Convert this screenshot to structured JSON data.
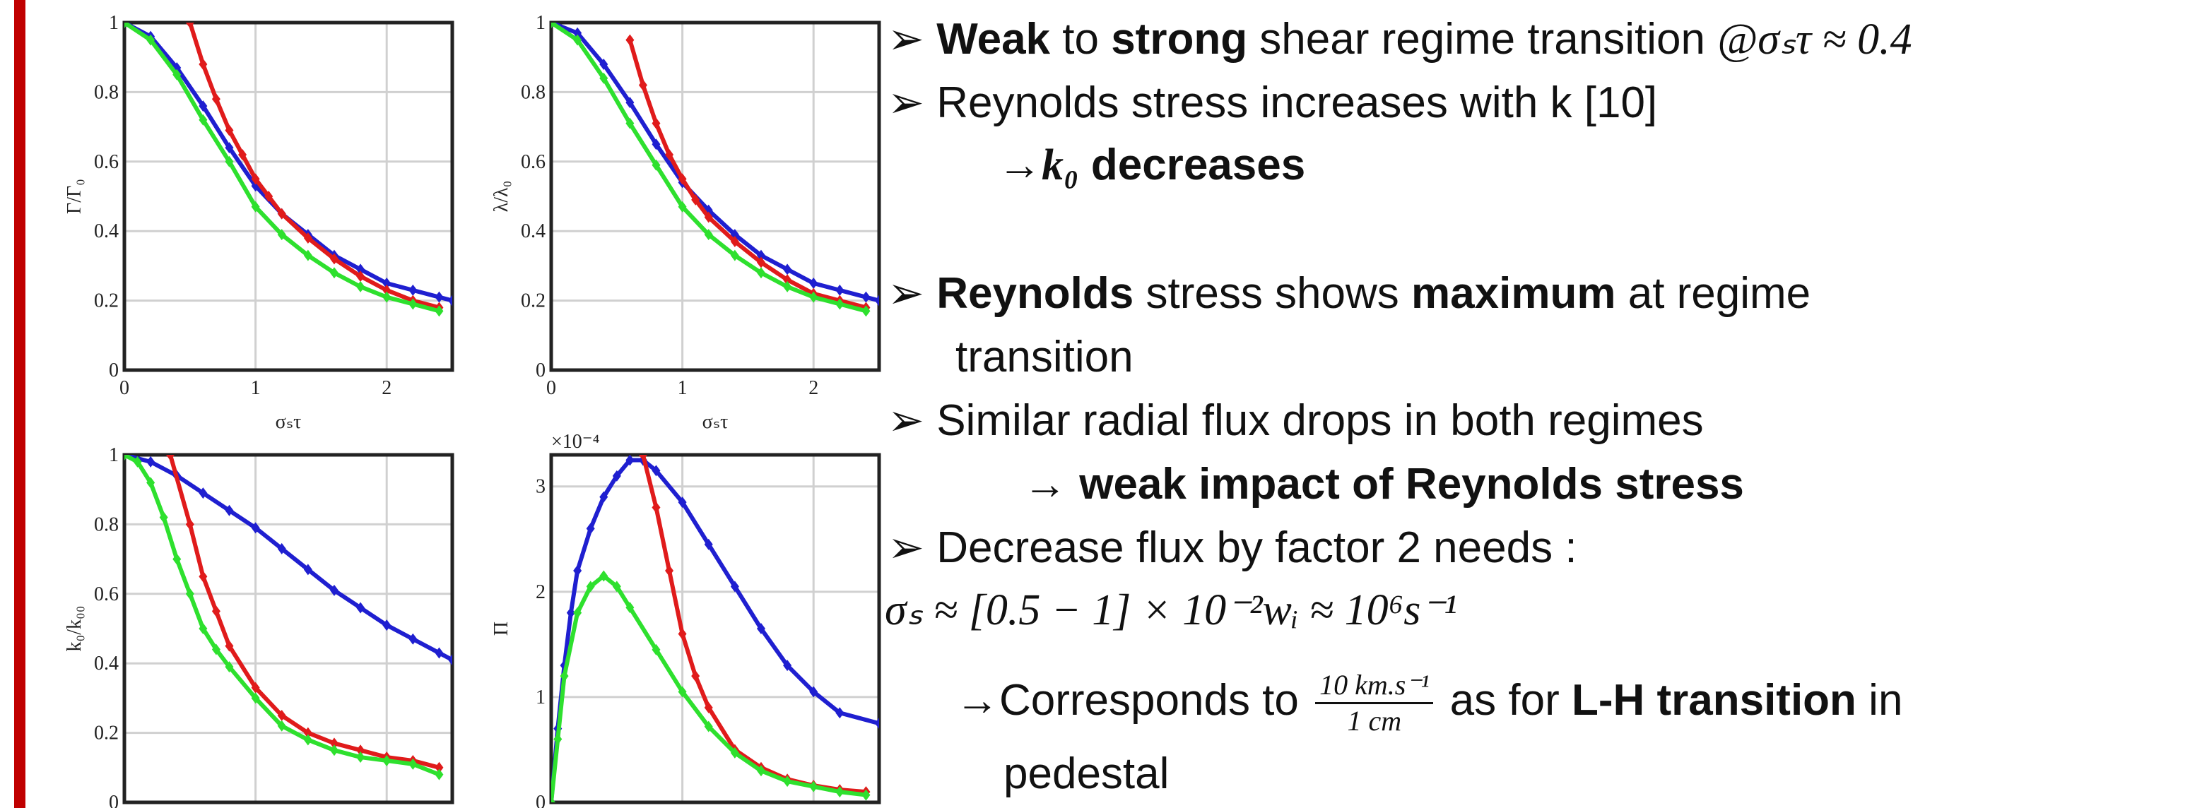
{
  "chart_data": [
    {
      "type": "line",
      "ylabel": "Γ/Γ₀",
      "xlabel": "σₛτ",
      "xlim": [
        0,
        2.5
      ],
      "xticks": [
        0,
        1,
        2
      ],
      "ylim": [
        0,
        1
      ],
      "yticks": [
        0,
        0.2,
        0.4,
        0.6,
        0.8,
        1
      ],
      "grid": true,
      "series": [
        {
          "color": "#1f1fd0",
          "x": [
            0,
            0.2,
            0.4,
            0.6,
            0.8,
            1.0,
            1.2,
            1.4,
            1.6,
            1.8,
            2.0,
            2.2,
            2.4,
            2.5
          ],
          "values": [
            1,
            0.96,
            0.87,
            0.76,
            0.64,
            0.53,
            0.45,
            0.39,
            0.33,
            0.29,
            0.25,
            0.23,
            0.21,
            0.2
          ]
        },
        {
          "color": "#e01b1b",
          "x": [
            0.5,
            0.6,
            0.7,
            0.8,
            0.9,
            1.0,
            1.1,
            1.2,
            1.4,
            1.6,
            1.8,
            2.0,
            2.2,
            2.4
          ],
          "values": [
            1.0,
            0.88,
            0.78,
            0.69,
            0.62,
            0.55,
            0.5,
            0.45,
            0.38,
            0.32,
            0.27,
            0.23,
            0.2,
            0.18
          ]
        },
        {
          "color": "#2ee02e",
          "x": [
            0,
            0.2,
            0.4,
            0.6,
            0.8,
            1.0,
            1.2,
            1.4,
            1.6,
            1.8,
            2.0,
            2.2,
            2.4
          ],
          "values": [
            1,
            0.95,
            0.85,
            0.72,
            0.6,
            0.47,
            0.39,
            0.33,
            0.28,
            0.24,
            0.21,
            0.19,
            0.17
          ]
        }
      ]
    },
    {
      "type": "line",
      "ylabel": "λ/λ₀",
      "xlabel": "σₛτ",
      "xlim": [
        0,
        2.5
      ],
      "xticks": [
        0,
        1,
        2
      ],
      "ylim": [
        0,
        1
      ],
      "yticks": [
        0,
        0.2,
        0.4,
        0.6,
        0.8,
        1
      ],
      "grid": true,
      "series": [
        {
          "color": "#1f1fd0",
          "x": [
            0,
            0.2,
            0.4,
            0.6,
            0.8,
            1.0,
            1.2,
            1.4,
            1.6,
            1.8,
            2.0,
            2.2,
            2.4,
            2.5
          ],
          "values": [
            1,
            0.97,
            0.88,
            0.77,
            0.65,
            0.54,
            0.46,
            0.39,
            0.33,
            0.29,
            0.25,
            0.23,
            0.21,
            0.2
          ]
        },
        {
          "color": "#e01b1b",
          "x": [
            0.6,
            0.7,
            0.8,
            0.9,
            1.0,
            1.1,
            1.2,
            1.4,
            1.6,
            1.8,
            2.0,
            2.2,
            2.4
          ],
          "values": [
            0.95,
            0.82,
            0.71,
            0.62,
            0.55,
            0.49,
            0.44,
            0.37,
            0.31,
            0.26,
            0.22,
            0.2,
            0.18
          ]
        },
        {
          "color": "#2ee02e",
          "x": [
            0,
            0.2,
            0.4,
            0.6,
            0.8,
            1.0,
            1.2,
            1.4,
            1.6,
            1.8,
            2.0,
            2.2,
            2.4
          ],
          "values": [
            1,
            0.95,
            0.84,
            0.71,
            0.59,
            0.47,
            0.39,
            0.33,
            0.28,
            0.24,
            0.21,
            0.19,
            0.17
          ]
        }
      ]
    },
    {
      "type": "line",
      "ylabel": "k₀/k₀₀",
      "xlim": [
        0,
        2.5
      ],
      "xticks": [
        0,
        1,
        2
      ],
      "ylim": [
        0,
        1
      ],
      "yticks": [
        0,
        0.2,
        0.4,
        0.6,
        0.8,
        1
      ],
      "grid": true,
      "series": [
        {
          "color": "#1f1fd0",
          "x": [
            0,
            0.2,
            0.4,
            0.6,
            0.8,
            1.0,
            1.2,
            1.4,
            1.6,
            1.8,
            2.0,
            2.2,
            2.4,
            2.5
          ],
          "values": [
            1,
            0.98,
            0.94,
            0.89,
            0.84,
            0.79,
            0.73,
            0.67,
            0.61,
            0.56,
            0.51,
            0.47,
            0.43,
            0.41
          ]
        },
        {
          "color": "#e01b1b",
          "x": [
            0.35,
            0.5,
            0.6,
            0.7,
            0.8,
            1.0,
            1.2,
            1.4,
            1.6,
            1.8,
            2.0,
            2.2,
            2.4
          ],
          "values": [
            1.0,
            0.8,
            0.65,
            0.55,
            0.45,
            0.33,
            0.25,
            0.2,
            0.17,
            0.15,
            0.13,
            0.12,
            0.1
          ]
        },
        {
          "color": "#2ee02e",
          "x": [
            0,
            0.1,
            0.2,
            0.3,
            0.4,
            0.5,
            0.6,
            0.7,
            0.8,
            1.0,
            1.2,
            1.4,
            1.6,
            1.8,
            2.0,
            2.2,
            2.4
          ],
          "values": [
            1,
            0.98,
            0.92,
            0.82,
            0.7,
            0.6,
            0.5,
            0.44,
            0.39,
            0.3,
            0.22,
            0.18,
            0.15,
            0.13,
            0.12,
            0.11,
            0.08
          ]
        }
      ]
    },
    {
      "type": "line",
      "ylabel": "Π",
      "exponent": "×10⁻⁴",
      "xlim": [
        0,
        2.5
      ],
      "xticks": [
        0,
        1,
        2
      ],
      "ylim": [
        0,
        3.3
      ],
      "yticks": [
        0,
        1,
        2,
        3
      ],
      "grid": true,
      "series": [
        {
          "color": "#1f1fd0",
          "x": [
            0,
            0.05,
            0.1,
            0.15,
            0.2,
            0.3,
            0.4,
            0.5,
            0.6,
            0.7,
            0.8,
            1.0,
            1.2,
            1.4,
            1.6,
            1.8,
            2.0,
            2.2,
            2.5
          ],
          "values": [
            0,
            0.7,
            1.3,
            1.8,
            2.2,
            2.6,
            2.9,
            3.1,
            3.25,
            3.25,
            3.15,
            2.85,
            2.45,
            2.05,
            1.65,
            1.3,
            1.05,
            0.85,
            0.75
          ]
        },
        {
          "color": "#e01b1b",
          "x": [
            0.7,
            0.8,
            0.9,
            1.0,
            1.1,
            1.2,
            1.4,
            1.6,
            1.8,
            2.0,
            2.2,
            2.4
          ],
          "values": [
            3.3,
            2.8,
            2.2,
            1.6,
            1.2,
            0.9,
            0.5,
            0.33,
            0.22,
            0.16,
            0.12,
            0.1
          ]
        },
        {
          "color": "#2ee02e",
          "x": [
            0,
            0.05,
            0.1,
            0.2,
            0.3,
            0.4,
            0.5,
            0.6,
            0.8,
            1.0,
            1.2,
            1.4,
            1.6,
            1.8,
            2.0,
            2.2,
            2.4
          ],
          "values": [
            0,
            0.6,
            1.2,
            1.8,
            2.05,
            2.15,
            2.05,
            1.85,
            1.45,
            1.05,
            0.72,
            0.47,
            0.3,
            0.2,
            0.15,
            0.1,
            0.07
          ]
        }
      ]
    }
  ],
  "text": {
    "bullet": "➢",
    "lines": [
      [
        "Weak",
        " to ",
        "strong",
        " shear regime transition ",
        "@σₛτ ≈ 0.4"
      ],
      [
        "Reynolds stress increases with k [10]"
      ],
      [
        "→",
        "k₀",
        " decreases"
      ],
      [
        "Reynolds",
        " stress shows ",
        "maximum",
        " at regime"
      ],
      [
        "transition"
      ],
      [
        "Similar radial flux drops in both regimes"
      ],
      [
        "→ weak impact of Reynolds stress"
      ],
      [
        "Decrease flux by factor 2 needs :"
      ],
      [
        "σₛ ≈ [0.5 − 1] × 10⁻²wᵢ ≈ 10⁶s⁻¹"
      ],
      [
        "→Corresponds to ",
        " as for ",
        "L-H transition",
        " in"
      ],
      [
        "pedestal"
      ]
    ],
    "fraction": {
      "numerator": "10 km.s⁻¹",
      "denominator": "1 cm"
    }
  }
}
